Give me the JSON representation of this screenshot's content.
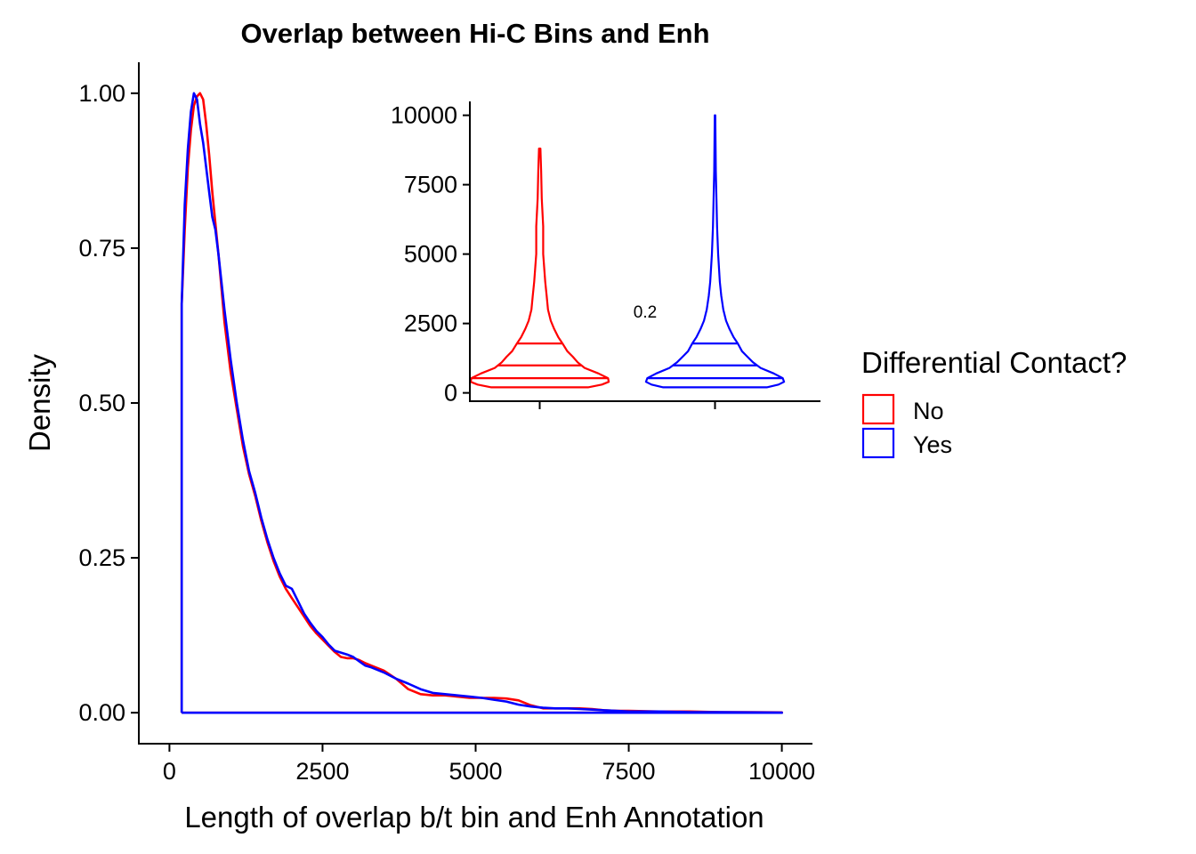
{
  "chart_data": [
    {
      "type": "line",
      "subtype": "density",
      "title": "Overlap between Hi-C Bins and Enh",
      "xlabel": "Length of overlap b/t bin and Enh Annotation",
      "ylabel": "Density",
      "xlim": [
        -500,
        10500
      ],
      "ylim": [
        -0.05,
        1.05
      ],
      "xticks": [
        0,
        2500,
        5000,
        7500,
        10000
      ],
      "xtick_labels": [
        "0",
        "2500",
        "5000",
        "7500",
        "10000"
      ],
      "yticks": [
        0,
        0.25,
        0.5,
        0.75,
        1.0
      ],
      "ytick_labels": [
        "0.00",
        "0.25",
        "0.50",
        "0.75",
        "1.00"
      ],
      "grid": false,
      "series": [
        {
          "name": "No",
          "color": "#FF0000",
          "x": [
            200,
            200,
            250,
            300,
            350,
            400,
            450,
            500,
            550,
            600,
            650,
            700,
            800,
            900,
            1000,
            1100,
            1200,
            1300,
            1400,
            1500,
            1600,
            1700,
            1800,
            1900,
            2000,
            2100,
            2200,
            2300,
            2400,
            2500,
            2600,
            2700,
            2800,
            2900,
            3000,
            3100,
            3200,
            3300,
            3500,
            3700,
            3900,
            4100,
            4300,
            4500,
            4700,
            4900,
            5100,
            5300,
            5500,
            5700,
            5900,
            6100,
            6300,
            6500,
            6700,
            6900,
            7100,
            7300,
            7500,
            8000,
            8500,
            9000,
            9500,
            10000,
            10000,
            200
          ],
          "y": [
            0,
            0.66,
            0.78,
            0.88,
            0.94,
            0.98,
            0.995,
            1.0,
            0.99,
            0.95,
            0.9,
            0.84,
            0.74,
            0.63,
            0.55,
            0.49,
            0.43,
            0.385,
            0.35,
            0.31,
            0.275,
            0.245,
            0.22,
            0.2,
            0.185,
            0.17,
            0.155,
            0.14,
            0.128,
            0.118,
            0.108,
            0.098,
            0.09,
            0.088,
            0.088,
            0.085,
            0.08,
            0.076,
            0.068,
            0.055,
            0.038,
            0.03,
            0.028,
            0.028,
            0.026,
            0.024,
            0.024,
            0.024,
            0.023,
            0.02,
            0.012,
            0.007,
            0.007,
            0.007,
            0.007,
            0.006,
            0.004,
            0.003,
            0.003,
            0.002,
            0.002,
            0.001,
            0.001,
            0.0005,
            0,
            0
          ]
        },
        {
          "name": "Yes",
          "color": "#0000FF",
          "x": [
            200,
            200,
            250,
            300,
            350,
            400,
            450,
            500,
            550,
            600,
            650,
            700,
            750,
            800,
            900,
            1000,
            1100,
            1200,
            1300,
            1400,
            1500,
            1600,
            1700,
            1800,
            1900,
            2000,
            2100,
            2200,
            2300,
            2400,
            2500,
            2600,
            2700,
            2800,
            2900,
            3000,
            3100,
            3200,
            3300,
            3500,
            3700,
            3900,
            4100,
            4300,
            4500,
            4700,
            4900,
            5100,
            5300,
            5500,
            5700,
            5900,
            6100,
            6300,
            6500,
            6700,
            6900,
            7100,
            7300,
            7500,
            8000,
            8500,
            9000,
            9500,
            10000,
            10000,
            200
          ],
          "y": [
            0,
            0.66,
            0.82,
            0.91,
            0.97,
            1.0,
            0.99,
            0.95,
            0.92,
            0.88,
            0.84,
            0.8,
            0.78,
            0.74,
            0.65,
            0.57,
            0.5,
            0.44,
            0.39,
            0.355,
            0.315,
            0.28,
            0.25,
            0.225,
            0.205,
            0.2,
            0.18,
            0.16,
            0.145,
            0.132,
            0.122,
            0.11,
            0.1,
            0.097,
            0.094,
            0.09,
            0.083,
            0.076,
            0.073,
            0.065,
            0.055,
            0.047,
            0.038,
            0.032,
            0.03,
            0.028,
            0.026,
            0.024,
            0.021,
            0.018,
            0.013,
            0.01,
            0.008,
            0.007,
            0.007,
            0.006,
            0.005,
            0.004,
            0.003,
            0.002,
            0.002,
            0.001,
            0.001,
            0.0005,
            0.0003,
            0,
            0
          ]
        }
      ],
      "legend": {
        "title": "Differential Contact?",
        "position": "right",
        "entries": [
          {
            "label": "No",
            "color": "#FF0000"
          },
          {
            "label": "Yes",
            "color": "#0000FF"
          }
        ]
      }
    },
    {
      "type": "violin",
      "title": "",
      "xlabel": "",
      "ylabel": "",
      "ylim": [
        -300,
        10500
      ],
      "yticks": [
        0,
        2500,
        5000,
        7500,
        10000
      ],
      "ytick_labels": [
        "0",
        "2500",
        "5000",
        "7500",
        "10000"
      ],
      "position": "inset top-right",
      "annotation": "0.2",
      "grid": false,
      "series": [
        {
          "name": "No",
          "color": "#FF0000",
          "min": 200,
          "max": 8800,
          "quantiles": [
            530,
            990,
            1780
          ],
          "profile_y": [
            200,
            300,
            400,
            530,
            700,
            900,
            1100,
            1300,
            1500,
            1780,
            2000,
            2300,
            2600,
            3000,
            3500,
            4000,
            5000,
            6000,
            7000,
            8000,
            8800
          ],
          "profile_w": [
            0.7,
            0.9,
            1.0,
            0.99,
            0.85,
            0.65,
            0.55,
            0.48,
            0.4,
            0.33,
            0.27,
            0.21,
            0.16,
            0.12,
            0.1,
            0.08,
            0.05,
            0.05,
            0.03,
            0.02,
            0.01
          ]
        },
        {
          "name": "Yes",
          "color": "#0000FF",
          "min": 200,
          "max": 10000,
          "quantiles": [
            530,
            990,
            1780
          ],
          "profile_y": [
            200,
            300,
            400,
            530,
            700,
            900,
            1100,
            1300,
            1500,
            1780,
            2000,
            2300,
            2600,
            3000,
            3500,
            4000,
            5000,
            6000,
            7000,
            8000,
            9000,
            10000
          ],
          "profile_w": [
            0.75,
            0.92,
            1.0,
            0.98,
            0.85,
            0.66,
            0.55,
            0.47,
            0.39,
            0.33,
            0.27,
            0.21,
            0.16,
            0.12,
            0.09,
            0.07,
            0.045,
            0.03,
            0.02,
            0.012,
            0.008,
            0.004
          ]
        }
      ]
    }
  ]
}
